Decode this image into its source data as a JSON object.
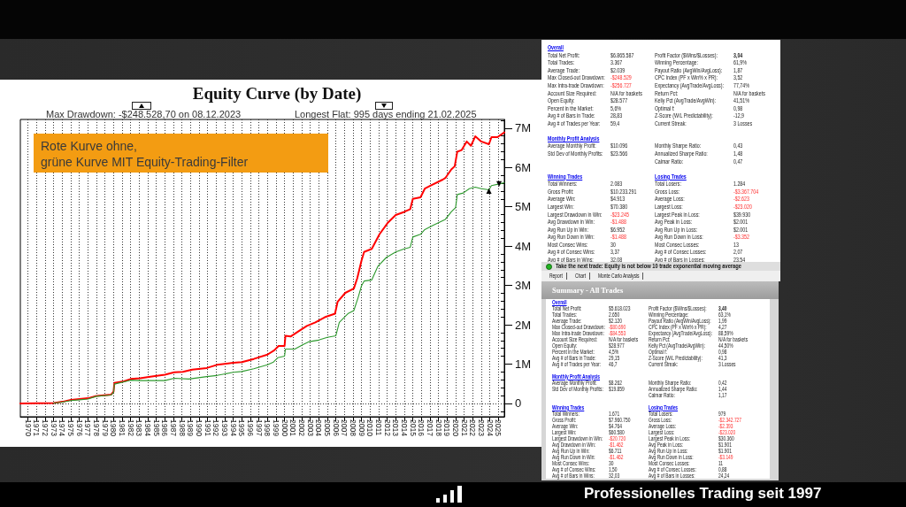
{
  "chart_data": [
    {
      "type": "line",
      "title": "Equity Curve (by Date)",
      "annotations": [
        "Max Drawdown: -$248.528,70 on 08.12.2023",
        "Longest Flat: 995 days ending 21.02.2025",
        "Rote Kurve ohne,\ngrüne Kurve MIT Equity-Trading-Filter",
        {
          "text": "▲",
          "x": 2023.9,
          "y": 5420000
        },
        {
          "text": "▼",
          "x": 2025.1,
          "y": 5590000
        }
      ],
      "series": [
        {
          "color": "#ff0000",
          "x": [
            1969.1,
            1973.0,
            1974.0,
            1975.0,
            1976.0,
            1977.0,
            1978.0,
            1979.7,
            1980.0,
            1980.1,
            1981.2,
            1982.0,
            1983.1,
            1984.3,
            1986.0,
            1987.1,
            1988.1,
            1989.2,
            1990.9,
            1992.1,
            1994.0,
            1995.0,
            1996.4,
            1998.0,
            1998.8,
            1999.3,
            2000.0,
            2000.1,
            2000.7,
            2001.6,
            2002.6,
            2003.6,
            2004.7,
            2005.9,
            2006.2,
            2007.1,
            2008.1,
            2008.5,
            2009.0,
            2009.3,
            2010.2,
            2011.1,
            2012.1,
            2013.0,
            2014.0,
            2014.7,
            2015.0,
            2015.9,
            2016.4,
            2017.1,
            2018.5,
            2018.8,
            2019.5,
            2019.9,
            2020.2,
            2020.7,
            2021.3,
            2021.8,
            2022.3,
            2023.0,
            2023.9,
            2024.2,
            2024.9,
            2025.7
          ],
          "values": [
            0,
            10000,
            40000,
            90000,
            110000,
            130000,
            190000,
            220000,
            300000,
            520000,
            560000,
            620000,
            640000,
            680000,
            730000,
            790000,
            800000,
            860000,
            900000,
            980000,
            1030000,
            1050000,
            1130000,
            1240000,
            1350000,
            1460000,
            1460000,
            1720000,
            1700000,
            1830000,
            1970000,
            2060000,
            2190000,
            2280000,
            2580000,
            2810000,
            2920000,
            3180000,
            3630000,
            3850000,
            3930000,
            4300000,
            4600000,
            4790000,
            4870000,
            4940000,
            5200000,
            5240000,
            5460000,
            5540000,
            5690000,
            5730000,
            5950000,
            6030000,
            6400000,
            6440000,
            6660000,
            6550000,
            6790000,
            6660000,
            6590000,
            6770000,
            6770000,
            6890000
          ]
        },
        {
          "color": "#2e9a2e",
          "x": [
            1973.0,
            1974.0,
            1975.0,
            1976.0,
            1977.0,
            1978.0,
            1979.7,
            1980.0,
            1980.1,
            1982.0,
            1983.0,
            1986.0,
            1987.1,
            1988.8,
            1990.9,
            1992.1,
            1994.0,
            1995.0,
            1996.4,
            1998.0,
            1998.7,
            1999.2,
            2000.0,
            2000.1,
            2001.2,
            2002.2,
            2002.9,
            2004.0,
            2005.0,
            2006.0,
            2006.4,
            2007.4,
            2008.1,
            2008.6,
            2009.0,
            2009.3,
            2010.2,
            2010.9,
            2011.9,
            2013.0,
            2014.0,
            2014.7,
            2015.0,
            2015.9,
            2016.4,
            2017.4,
            2018.8,
            2019.5,
            2020.0,
            2020.2,
            2020.9,
            2021.6,
            2022.3,
            2023.0,
            2023.9,
            2024.2,
            2025.1,
            2025.7
          ],
          "values": [
            10000,
            30000,
            70000,
            90000,
            110000,
            180000,
            210000,
            280000,
            490000,
            590000,
            580000,
            580000,
            640000,
            620000,
            680000,
            710000,
            790000,
            810000,
            880000,
            980000,
            1050000,
            1160000,
            1200000,
            1380000,
            1380000,
            1500000,
            1570000,
            1610000,
            1680000,
            1720000,
            2060000,
            2280000,
            2360000,
            2690000,
            2990000,
            3110000,
            3140000,
            3480000,
            3710000,
            3850000,
            3930000,
            3970000,
            4230000,
            4300000,
            4420000,
            4530000,
            4680000,
            4870000,
            4980000,
            5310000,
            5350000,
            5460000,
            5500000,
            5460000,
            5430000,
            5540000,
            5580000,
            5610000
          ]
        }
      ],
      "xlim": [
        1969.1,
        2025.7
      ],
      "xticks": [
        1970,
        1971,
        1972,
        1973,
        1974,
        1975,
        1976,
        1977,
        1978,
        1979,
        1980,
        1981,
        1982,
        1983,
        1984,
        1985,
        1986,
        1987,
        1988,
        1989,
        1990,
        1991,
        1992,
        1993,
        1994,
        1995,
        1996,
        1997,
        1998,
        1999,
        2000,
        2001,
        2002,
        2003,
        2004,
        2005,
        2006,
        2007,
        2008,
        2009,
        2010,
        2011,
        2012,
        2013,
        2014,
        2015,
        2016,
        2017,
        2018,
        2019,
        2020,
        2021,
        2022,
        2023,
        2024,
        2025
      ],
      "ylim": [
        -340000,
        7220000
      ],
      "yticks": [
        {
          "value": -200000,
          "label": null
        },
        0,
        {
          "value": 200000,
          "label": null
        },
        {
          "value": 400000,
          "label": null
        },
        {
          "value": 600000,
          "label": null
        },
        {
          "value": 800000,
          "label": null
        },
        {
          "value": 1000000,
          "label": "1M"
        },
        {
          "value": 1200000,
          "label": null
        },
        {
          "value": 1400000,
          "label": null
        },
        {
          "value": 1600000,
          "label": null
        },
        {
          "value": 1800000,
          "label": null
        },
        {
          "value": 2000000,
          "label": "2M"
        },
        {
          "value": 2200000,
          "label": null
        },
        {
          "value": 2400000,
          "label": null
        },
        {
          "value": 2600000,
          "label": null
        },
        {
          "value": 2800000,
          "label": null
        },
        {
          "value": 3000000,
          "label": "3M"
        },
        {
          "value": 3200000,
          "label": null
        },
        {
          "value": 3400000,
          "label": null
        },
        {
          "value": 3600000,
          "label": null
        },
        {
          "value": 3800000,
          "label": null
        },
        {
          "value": 4000000,
          "label": "4M"
        },
        {
          "value": 4200000,
          "label": null
        },
        {
          "value": 4400000,
          "label": null
        },
        {
          "value": 4600000,
          "label": null
        },
        {
          "value": 4800000,
          "label": null
        },
        {
          "value": 5000000,
          "label": "5M"
        },
        {
          "value": 5200000,
          "label": null
        },
        {
          "value": 5400000,
          "label": null
        },
        {
          "value": 5600000,
          "label": null
        },
        {
          "value": 5800000,
          "label": null
        },
        {
          "value": 6000000,
          "label": "6M"
        },
        {
          "value": 6200000,
          "label": null
        },
        {
          "value": 6400000,
          "label": null
        },
        {
          "value": 6600000,
          "label": null
        },
        {
          "value": 6800000,
          "label": null
        },
        {
          "value": 7000000,
          "label": "7M"
        },
        {
          "value": 7200000,
          "label": null
        }
      ],
      "grid": "x",
      "ref_lines": [
        {
          "axis": "y",
          "value": 0,
          "line_style": "dotted",
          "color": "#333333"
        }
      ]
    },
    {
      "type": "other",
      "annotations": [
        "Overall",
        "Total Net Profit:",
        "$6.865.587",
        "Profit Factor ($Wins/$Losses):",
        "3,04",
        "Total Trades:",
        "3.367",
        "Winning Percentage:",
        "61,9%",
        "Average Trade:",
        "$2.039",
        "Payout Ratio (AvgWin/AvgLoss):",
        "1,87",
        "Max Closed-out Drawdown:",
        "-$248.529",
        "CPC Index (PF x Win% x PR):",
        "3,52",
        "Max Intra-trade Drawdown:",
        "-$256.727",
        "Expectancy (AvgTrade/AvgLoss):",
        "77,74%",
        "Account Size Required:",
        "N/A for baskets",
        "Return Pct:",
        "N/A for baskets",
        "Open Equity:",
        "$28.577",
        "Kelly Pct (AvgTrade/AvgWin):",
        "41,51%",
        "Percent in the Market:",
        "5,6%",
        "Optimal f:",
        "0,98",
        "Avg # of Bars in Trade:",
        "28,83",
        "Z-Score (W/L Predictability):",
        "-12,9",
        "Avg # of Trades per Year:",
        "59,4",
        "Current Streak:",
        "3 Losses",
        "Monthly Profit Analysis",
        "Average Monthly Profit:",
        "$10.096",
        "Monthly Sharpe Ratio:",
        "0,43",
        "Std Dev of Monthly Profits:",
        "$23.566",
        "Annualized Sharpe Ratio:",
        "1,48",
        "Calmar Ratio:",
        "0,47",
        "Winning Trades",
        "Losing Trades",
        "Total Winners:",
        "2.083",
        "Total Losers:",
        "1.284",
        "Gross Profit:",
        "$10.233.291",
        "Gross Loss:",
        "-$3.367.704",
        "Average Win:",
        "$4.913",
        "Average Loss:",
        "-$2.623",
        "Largest Win:",
        "$70.380",
        "Largest Loss:",
        "-$23.020",
        "Largest Drawdown in Win:",
        "-$23.245",
        "Largest Peak in Loss:",
        "$39.930",
        "Avg Drawdown in Win:",
        "-$1.488",
        "Avg Peak in Loss:",
        "$2.001",
        "Avg Run Up in Win:",
        "$6.952",
        "Avg Run Up in Loss:",
        "$2.001",
        "Avg Run Down in Win:",
        "-$1.488",
        "Avg Run Down in Loss:",
        "-$3.352",
        "Most Consec Wins:",
        "30",
        "Most Consec Losses:",
        "13",
        "Avg # of Consec Wins:",
        "3,37",
        "Avg # of Consec Losses:",
        "2,07",
        "Avg # of Bars in Wins:",
        "32,08",
        "Avg # of Bars in Losses:",
        "23,54"
      ]
    },
    {
      "type": "other",
      "annotations": [
        "Take the next trade: Equity is not below 10 trade exponential moving average",
        "Report",
        "Chart",
        "Monte Carlo Analysis"
      ]
    },
    {
      "type": "other",
      "title": "Summary - All Trades",
      "annotations": [
        "Overall",
        "Total Net Profit:",
        "$5.618.023",
        "Profit Factor ($Wins/$Losses):",
        "3,40",
        "Total Trades:",
        "2.650",
        "Winning Percentage:",
        "63,1%",
        "Average Trade:",
        "$2.120",
        "Payout Ratio (AvgWin/AvgLoss):",
        "1,99",
        "Max Closed-out Drawdown:",
        "-$80.690",
        "CPC Index (PF x Win% x PR):",
        "4,27",
        "Max Intra-trade Drawdown:",
        "-$84.553",
        "Expectancy (AvgTrade/AvgLoss):",
        "88,59%",
        "Account Size Required:",
        "N/A for baskets",
        "Return Pct:",
        "N/A for baskets",
        "Open Equity:",
        "$28.977",
        "Kelly Pct (AvgTrade/AvgWin):",
        "44,50%",
        "Percent in the Market:",
        "4,5%",
        "Optimal f:",
        "0,98",
        "Avg # of Bars in Trade:",
        "29,15",
        "Z-Score (W/L Predictability):",
        "41,3",
        "Avg # of Trades per Year:",
        "46,7",
        "Current Streak:",
        "3 Losses",
        "Monthly Profit Analysis",
        "Average Monthly Profit:",
        "$8.262",
        "Monthly Sharpe Ratio:",
        "0,42",
        "Std Dev of Monthly Profits:",
        "$19.859",
        "Annualized Sharpe Ratio:",
        "1,44",
        "Calmar Ratio:",
        "1,17",
        "Winning Trades",
        "Losing Trades",
        "Total Winners:",
        "1.671",
        "Total Losers:",
        "979",
        "Gross Profit:",
        "$7.960.750",
        "Gross Loss:",
        "-$2.342.727",
        "Average Win:",
        "$4.764",
        "Average Loss:",
        "-$2.393",
        "Largest Win:",
        "$60.580",
        "Largest Loss:",
        "-$23.020",
        "Largest Drawdown in Win:",
        "-$20.720",
        "Largest Peak in Loss:",
        "$30.360",
        "Avg Drawdown in Win:",
        "-$1.462",
        "Avg Peak in Loss:",
        "$1.901",
        "Avg Run Up in Win:",
        "$6.711",
        "Avg Run Up in Loss:",
        "$1.901",
        "Avg Run Down in Win:",
        "-$1.462",
        "Avg Run Down in Loss:",
        "-$3.149",
        "Most Consec Wins:",
        "30",
        "Most Consec Losses:",
        "11",
        "Avg # of Consec Wins:",
        "1,50",
        "Avg # of Consec Losses:",
        "0,88",
        "Avg # of Bars in Wins:",
        "32,03",
        "Avg # of Bars in Losses:",
        "24,24"
      ]
    },
    {
      "type": "other",
      "annotations": [
        "Professionelles Trading seit 1997"
      ]
    }
  ]
}
